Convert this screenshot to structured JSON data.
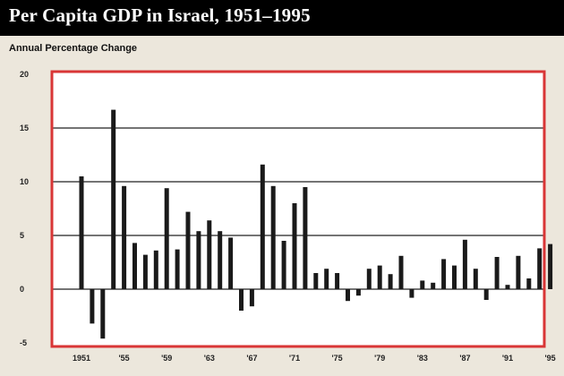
{
  "chart_data": {
    "type": "bar",
    "title": "Per Capita GDP in Israel, 1951–1995",
    "ylabel": "Annual Percentage Change",
    "xlabel": "",
    "ylim": [
      -5,
      20
    ],
    "yticks": [
      -5,
      0,
      5,
      10,
      15,
      20
    ],
    "ytick_labels": [
      "-5",
      "0",
      "5",
      "10",
      "15",
      "20"
    ],
    "grid": true,
    "xtick_labels": [
      "1951",
      "'55",
      "'59",
      "'63",
      "'67",
      "'71",
      "'75",
      "'79",
      "'83",
      "'87",
      "'91",
      "'95"
    ],
    "xtick_years": [
      1951,
      1955,
      1959,
      1963,
      1967,
      1971,
      1975,
      1979,
      1983,
      1987,
      1991,
      1995
    ],
    "categories": [
      1951,
      1952,
      1953,
      1954,
      1955,
      1956,
      1957,
      1958,
      1959,
      1960,
      1961,
      1962,
      1963,
      1964,
      1965,
      1966,
      1967,
      1968,
      1969,
      1970,
      1971,
      1972,
      1973,
      1974,
      1975,
      1976,
      1977,
      1978,
      1979,
      1980,
      1981,
      1982,
      1983,
      1984,
      1985,
      1986,
      1987,
      1988,
      1989,
      1990,
      1991,
      1992,
      1993,
      1994,
      1995
    ],
    "values": [
      10.5,
      -3.2,
      -4.6,
      16.7,
      9.6,
      4.3,
      3.2,
      3.6,
      9.4,
      3.7,
      7.2,
      5.4,
      6.4,
      5.4,
      4.8,
      -2.0,
      -1.6,
      11.6,
      9.6,
      4.5,
      8.0,
      9.5,
      1.5,
      1.9,
      1.5,
      -1.1,
      -0.6,
      1.9,
      2.2,
      1.4,
      3.1,
      -0.8,
      0.8,
      0.6,
      2.8,
      2.2,
      4.6,
      1.9,
      -1.0,
      3.0,
      0.4,
      3.1,
      1.0,
      3.8,
      4.2
    ]
  },
  "colors": {
    "background": "#ece7dc",
    "title_bar": "#000000",
    "title_text": "#ffffff",
    "plot_border": "#d93636",
    "plot_fill": "#ffffff",
    "gridline": "#222222",
    "bar": "#1a1a1a"
  }
}
